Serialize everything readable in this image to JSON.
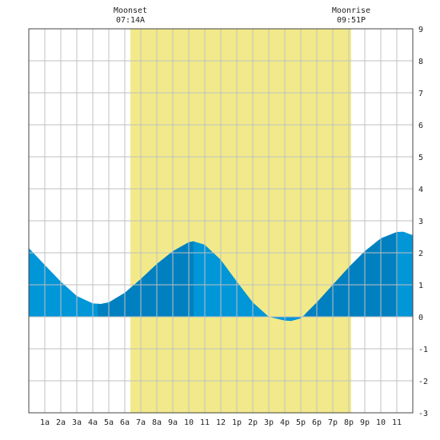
{
  "chart_data": {
    "type": "area",
    "x_ticks": [
      "1a",
      "2a",
      "3a",
      "4a",
      "5a",
      "6a",
      "7a",
      "8a",
      "9a",
      "10",
      "11",
      "12",
      "1p",
      "2p",
      "3p",
      "4p",
      "5p",
      "6p",
      "7p",
      "8p",
      "9p",
      "10",
      "11"
    ],
    "y_ticks": [
      "-3",
      "-2",
      "-1",
      "0",
      "1",
      "2",
      "3",
      "4",
      "5",
      "6",
      "7",
      "8",
      "9"
    ],
    "ylim": [
      -3,
      9
    ],
    "xlim_hours": [
      0,
      24
    ],
    "grid": true,
    "tide_series": {
      "hours": [
        0,
        1,
        2,
        3,
        4,
        4.5,
        5,
        6,
        7,
        8,
        9,
        10,
        10.3,
        11,
        12,
        13,
        14,
        15,
        16,
        16.4,
        17,
        18,
        19,
        20,
        21,
        22,
        23,
        23.4,
        24
      ],
      "values": [
        2.15,
        1.62,
        1.1,
        0.65,
        0.42,
        0.4,
        0.45,
        0.75,
        1.18,
        1.65,
        2.05,
        2.33,
        2.36,
        2.25,
        1.78,
        1.1,
        0.45,
        0.0,
        -0.12,
        -0.13,
        -0.05,
        0.45,
        1.0,
        1.55,
        2.05,
        2.45,
        2.65,
        2.66,
        2.55
      ]
    },
    "daylight_band_hours": [
      6.35,
      20.15
    ],
    "dark_segments_hours": [
      [
        4.3,
        10.3
      ],
      [
        17.3,
        23.05
      ]
    ],
    "annotations": [
      {
        "title": "Moonset",
        "time": "07:14A"
      },
      {
        "title": "Moonrise",
        "time": "09:51P"
      }
    ],
    "colors": {
      "daylight": "#f2ea8a",
      "tide_light": "#0096d8",
      "tide_dark": "#0080c0",
      "grid": "#c0c0c0",
      "axis": "#444444"
    }
  }
}
